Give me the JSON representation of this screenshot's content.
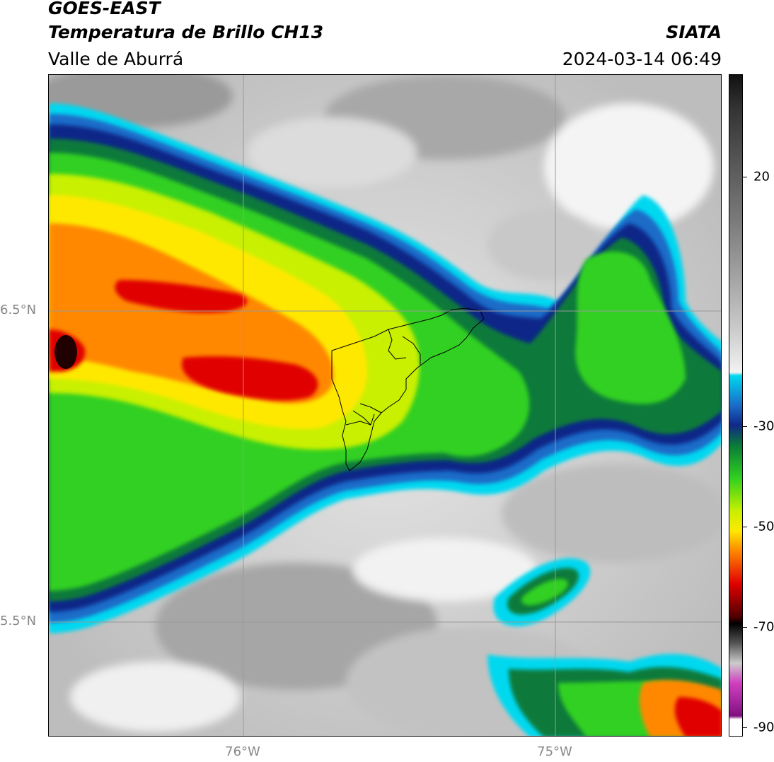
{
  "header": {
    "satellite": "GOES-EAST",
    "product": "Temperatura de Brillo CH13",
    "region": "Valle de Aburrá",
    "agency": "SIATA",
    "datetime": "2024-03-14 06:49"
  },
  "map": {
    "lat_labels": [
      "6.5°N",
      "5.5°N"
    ],
    "lon_labels": [
      "76°W",
      "75°W"
    ],
    "gridline_color": "#999999"
  },
  "colorbar": {
    "ticks": [
      "20",
      "-30",
      "-50",
      "-70",
      "-90"
    ],
    "colors": {
      "warm_gray_light": "#f2f2f2",
      "cyan": "#00d8f0",
      "blue": "#1a6cc8",
      "navy": "#102888",
      "dark_green": "#0a7a3a",
      "green": "#30d020",
      "yellow_green": "#c8f000",
      "yellow": "#ffe800",
      "orange": "#ff8800",
      "red": "#e00000",
      "black": "#200000",
      "magenta": "#d040c0",
      "purple": "#801080"
    }
  }
}
